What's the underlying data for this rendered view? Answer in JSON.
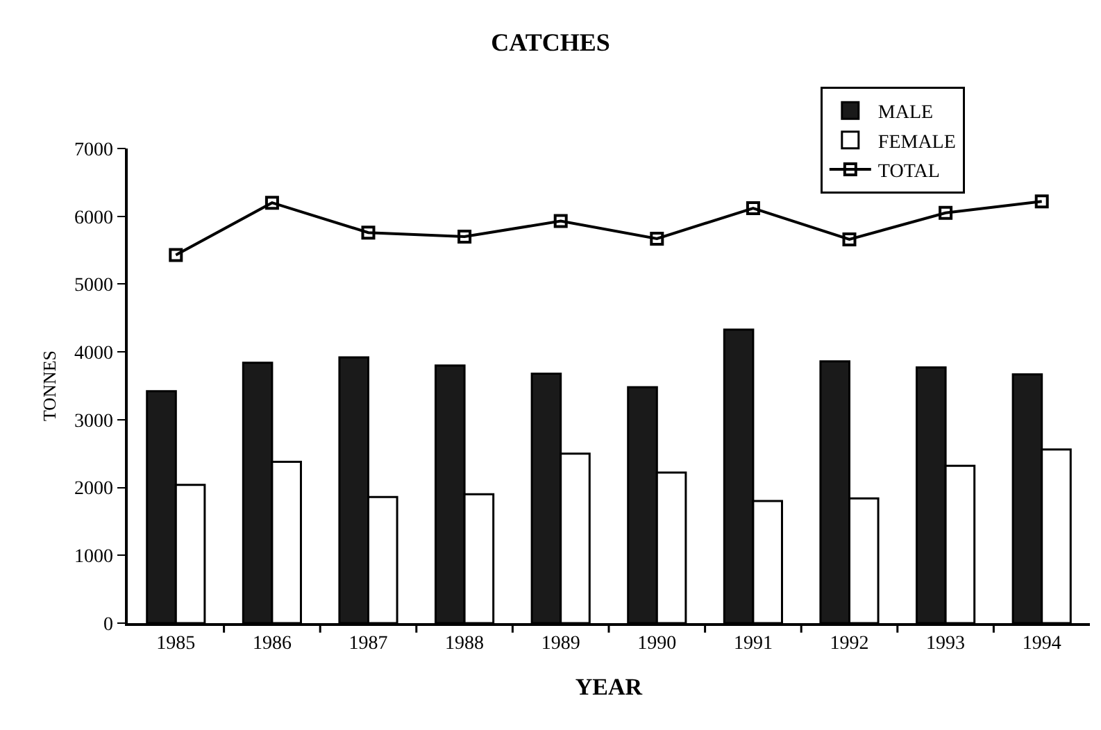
{
  "chart_data": {
    "type": "bar",
    "title": "CATCHES",
    "xlabel": "YEAR",
    "ylabel": "TONNES",
    "categories": [
      "1985",
      "1986",
      "1987",
      "1988",
      "1989",
      "1990",
      "1991",
      "1992",
      "1993",
      "1994"
    ],
    "series": [
      {
        "name": "MALE",
        "color": "#1a1a1a",
        "values": [
          3420,
          3840,
          3920,
          3800,
          3680,
          3480,
          4330,
          3860,
          3770,
          3670
        ]
      },
      {
        "name": "FEMALE",
        "color": "#ffffff",
        "values": [
          2040,
          2380,
          1860,
          1900,
          2500,
          2220,
          1800,
          1840,
          2320,
          2560
        ]
      },
      {
        "name": "TOTAL",
        "type": "line",
        "color": "#000000",
        "marker": "square",
        "line_style": "solid",
        "values": [
          5430,
          6200,
          5760,
          5700,
          5930,
          5670,
          6120,
          5660,
          6050,
          6220
        ]
      }
    ],
    "ylim": [
      0,
      7000
    ],
    "yticks": [
      0,
      1000,
      2000,
      3000,
      4000,
      5000,
      6000,
      7000
    ],
    "legend": "top right"
  }
}
